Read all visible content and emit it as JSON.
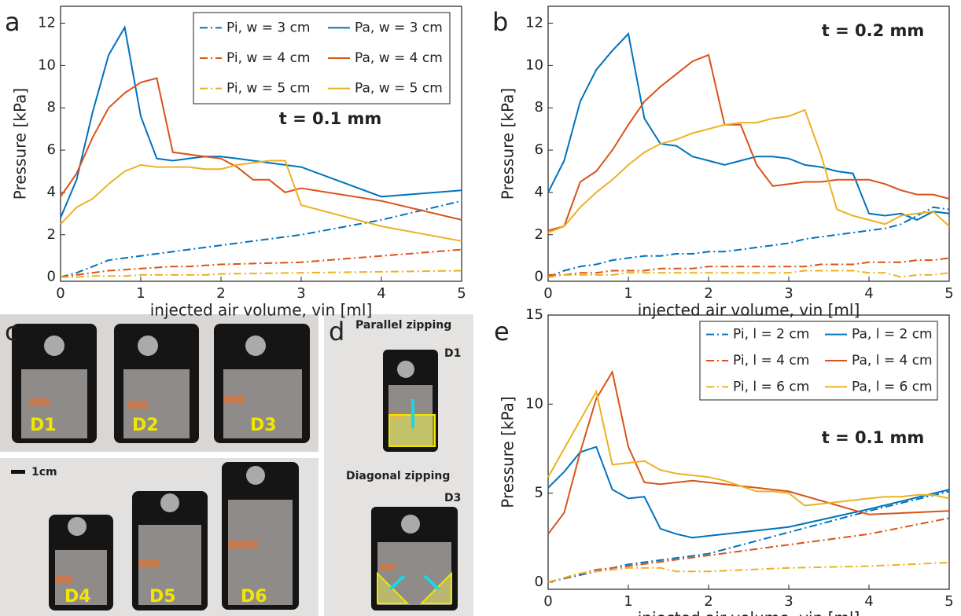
{
  "chart_data": [
    {
      "type": "line",
      "panel_label": "a",
      "annotation": "t = 0.1 mm",
      "x_label": "injected air volume, vin [ml]",
      "y_label": "Pressure [kPa]",
      "xlim": [
        0,
        5
      ],
      "ylim": [
        -0.2,
        12.8
      ],
      "xticks": [
        0,
        1,
        2,
        3,
        4,
        5
      ],
      "yticks": [
        0,
        2,
        4,
        6,
        8,
        10,
        12
      ],
      "legend": "upper right",
      "series": [
        {
          "name": "Pi, w = 3 cm",
          "color": "#0072BD",
          "dash": "dash-dot",
          "x": [
            0,
            0.2,
            0.4,
            0.6,
            0.8,
            1,
            1.2,
            1.4,
            1.6,
            1.8,
            2,
            3,
            4,
            5
          ],
          "values": [
            0,
            0.2,
            0.5,
            0.8,
            0.9,
            1.0,
            1.1,
            1.2,
            1.3,
            1.4,
            1.5,
            2.0,
            2.7,
            3.6
          ]
        },
        {
          "name": "Pi, w = 4 cm",
          "color": "#D95319",
          "dash": "dash-dot",
          "x": [
            0,
            0.2,
            0.4,
            0.6,
            0.8,
            1,
            1.2,
            1.4,
            1.6,
            1.8,
            2,
            3,
            4,
            5
          ],
          "values": [
            0,
            0.1,
            0.2,
            0.3,
            0.35,
            0.4,
            0.45,
            0.5,
            0.5,
            0.55,
            0.6,
            0.7,
            1.0,
            1.3
          ]
        },
        {
          "name": "Pi, w = 5 cm",
          "color": "#EDB120",
          "dash": "dash-dot",
          "x": [
            0,
            0.2,
            0.4,
            0.6,
            0.8,
            1,
            1.2,
            1.4,
            1.6,
            1.8,
            2,
            3,
            4,
            5
          ],
          "values": [
            0,
            0,
            0.05,
            0.05,
            0.05,
            0.1,
            0.1,
            0.1,
            0.1,
            0.1,
            0.15,
            0.2,
            0.25,
            0.3
          ]
        },
        {
          "name": "Pa, w = 3 cm",
          "color": "#0072BD",
          "dash": "solid",
          "x": [
            0,
            0.2,
            0.4,
            0.6,
            0.8,
            1,
            1.2,
            1.4,
            1.6,
            1.8,
            2,
            2.2,
            2.4,
            2.6,
            2.8,
            3,
            4,
            5
          ],
          "values": [
            2.8,
            4.6,
            7.8,
            10.5,
            11.8,
            7.6,
            5.6,
            5.5,
            5.6,
            5.7,
            5.7,
            5.6,
            5.5,
            5.4,
            5.3,
            5.2,
            3.8,
            4.1
          ]
        },
        {
          "name": "Pa, w = 4 cm",
          "color": "#D95319",
          "dash": "solid",
          "x": [
            0,
            0.2,
            0.4,
            0.6,
            0.8,
            1,
            1.2,
            1.4,
            1.6,
            1.8,
            2,
            2.2,
            2.4,
            2.6,
            2.8,
            3,
            4,
            5
          ],
          "values": [
            3.8,
            4.9,
            6.6,
            8.0,
            8.7,
            9.2,
            9.4,
            5.9,
            5.8,
            5.7,
            5.6,
            5.2,
            4.6,
            4.6,
            4.0,
            4.2,
            3.6,
            2.7
          ]
        },
        {
          "name": "Pa, w = 5 cm",
          "color": "#EDB120",
          "dash": "solid",
          "x": [
            0,
            0.2,
            0.4,
            0.6,
            0.8,
            1,
            1.2,
            1.4,
            1.6,
            1.8,
            2,
            2.2,
            2.4,
            2.6,
            2.8,
            3,
            4,
            5
          ],
          "values": [
            2.5,
            3.3,
            3.7,
            4.4,
            5.0,
            5.3,
            5.2,
            5.2,
            5.2,
            5.1,
            5.1,
            5.3,
            5.4,
            5.5,
            5.5,
            3.4,
            2.4,
            1.7
          ]
        }
      ]
    },
    {
      "type": "line",
      "panel_label": "b",
      "annotation": "t = 0.2 mm",
      "x_label": "injected air volume, vin [ml]",
      "y_label": "Pressure [kPa]",
      "xlim": [
        0,
        5
      ],
      "ylim": [
        -0.2,
        12.8
      ],
      "xticks": [
        0,
        1,
        2,
        3,
        4,
        5
      ],
      "yticks": [
        0,
        2,
        4,
        6,
        8,
        10,
        12
      ],
      "series": [
        {
          "name": "Pi, w = 3 cm",
          "color": "#0072BD",
          "dash": "dash-dot",
          "x": [
            0,
            0.2,
            0.4,
            0.6,
            0.8,
            1,
            1.2,
            1.4,
            1.6,
            1.8,
            2,
            2.2,
            2.4,
            2.6,
            2.8,
            3,
            3.2,
            3.4,
            3.6,
            3.8,
            4,
            4.2,
            4.4,
            4.6,
            4.8,
            5
          ],
          "values": [
            0,
            0.3,
            0.5,
            0.6,
            0.8,
            0.9,
            1.0,
            1.0,
            1.1,
            1.1,
            1.2,
            1.2,
            1.3,
            1.4,
            1.5,
            1.6,
            1.8,
            1.9,
            2.0,
            2.1,
            2.2,
            2.3,
            2.5,
            2.9,
            3.3,
            3.2
          ]
        },
        {
          "name": "Pi, w = 4 cm",
          "color": "#D95319",
          "dash": "dash-dot",
          "x": [
            0,
            0.2,
            0.4,
            0.6,
            0.8,
            1,
            1.2,
            1.4,
            1.6,
            1.8,
            2,
            2.2,
            2.4,
            2.6,
            2.8,
            3,
            3.2,
            3.4,
            3.6,
            3.8,
            4,
            4.2,
            4.4,
            4.6,
            4.8,
            5
          ],
          "values": [
            0.1,
            0.1,
            0.2,
            0.2,
            0.3,
            0.3,
            0.3,
            0.4,
            0.4,
            0.4,
            0.5,
            0.5,
            0.5,
            0.5,
            0.5,
            0.5,
            0.5,
            0.6,
            0.6,
            0.6,
            0.7,
            0.7,
            0.7,
            0.8,
            0.8,
            0.9
          ]
        },
        {
          "name": "Pi, w = 5 cm",
          "color": "#EDB120",
          "dash": "dash-dot",
          "x": [
            0,
            0.2,
            0.4,
            0.6,
            0.8,
            1,
            1.2,
            1.4,
            1.6,
            1.8,
            2,
            2.2,
            2.4,
            2.6,
            2.8,
            3,
            3.2,
            3.4,
            3.6,
            3.8,
            4,
            4.2,
            4.4,
            4.6,
            4.8,
            5
          ],
          "values": [
            0,
            0.1,
            0.1,
            0.1,
            0.1,
            0.2,
            0.2,
            0.2,
            0.2,
            0.2,
            0.2,
            0.2,
            0.2,
            0.2,
            0.2,
            0.2,
            0.3,
            0.3,
            0.3,
            0.3,
            0.2,
            0.2,
            0.0,
            0.1,
            0.1,
            0.2
          ]
        },
        {
          "name": "Pa, w = 3 cm",
          "color": "#0072BD",
          "dash": "solid",
          "x": [
            0,
            0.2,
            0.4,
            0.6,
            0.8,
            1,
            1.2,
            1.4,
            1.6,
            1.8,
            2,
            2.2,
            2.4,
            2.6,
            2.8,
            3,
            3.2,
            3.4,
            3.6,
            3.8,
            4,
            4.2,
            4.4,
            4.6,
            4.8,
            5
          ],
          "values": [
            4.0,
            5.5,
            8.3,
            9.8,
            10.7,
            11.5,
            7.5,
            6.3,
            6.2,
            5.7,
            5.5,
            5.3,
            5.5,
            5.7,
            5.7,
            5.6,
            5.3,
            5.2,
            5.0,
            4.9,
            3.0,
            2.9,
            3.0,
            2.7,
            3.1,
            3.0
          ]
        },
        {
          "name": "Pa, w = 4 cm",
          "color": "#D95319",
          "dash": "solid",
          "x": [
            0,
            0.2,
            0.4,
            0.6,
            0.8,
            1,
            1.2,
            1.4,
            1.6,
            1.8,
            2,
            2.2,
            2.4,
            2.6,
            2.8,
            3,
            3.2,
            3.4,
            3.6,
            3.8,
            4,
            4.2,
            4.4,
            4.6,
            4.8,
            5
          ],
          "values": [
            2.2,
            2.4,
            4.5,
            5.0,
            6.0,
            7.2,
            8.3,
            9.0,
            9.6,
            10.2,
            10.5,
            7.2,
            7.2,
            5.3,
            4.3,
            4.4,
            4.5,
            4.5,
            4.6,
            4.6,
            4.6,
            4.4,
            4.1,
            3.9,
            3.9,
            3.7
          ]
        },
        {
          "name": "Pa, w = 5 cm",
          "color": "#EDB120",
          "dash": "solid",
          "x": [
            0,
            0.2,
            0.4,
            0.6,
            0.8,
            1,
            1.2,
            1.4,
            1.6,
            1.8,
            2,
            2.2,
            2.4,
            2.6,
            2.8,
            3,
            3.2,
            3.4,
            3.6,
            3.8,
            4,
            4.2,
            4.4,
            4.6,
            4.8,
            5
          ],
          "values": [
            2.1,
            2.4,
            3.3,
            4.0,
            4.6,
            5.3,
            5.9,
            6.3,
            6.5,
            6.8,
            7.0,
            7.2,
            7.3,
            7.3,
            7.5,
            7.6,
            7.9,
            5.8,
            3.2,
            2.9,
            2.7,
            2.5,
            2.9,
            3.0,
            3.1,
            2.4
          ]
        }
      ]
    },
    {
      "type": "line",
      "panel_label": "e",
      "annotation": "t = 0.1 mm",
      "x_label": "injected air volume, vin [ml]",
      "y_label": "Pressure [kPa]",
      "xlim": [
        0,
        5
      ],
      "ylim": [
        -0.4,
        15
      ],
      "xticks": [
        0,
        1,
        2,
        3,
        4,
        5
      ],
      "yticks": [
        0,
        5,
        10,
        15
      ],
      "legend": "upper right",
      "series": [
        {
          "name": "Pi, l = 2 cm",
          "color": "#0072BD",
          "dash": "dash-dot",
          "x": [
            0,
            1,
            2,
            3,
            4,
            5
          ],
          "values": [
            0,
            1.0,
            1.6,
            2.8,
            4.0,
            5.1
          ]
        },
        {
          "name": "Pi, l = 4 cm",
          "color": "#D95319",
          "dash": "dash-dot",
          "x": [
            0,
            0.6,
            1,
            2,
            3,
            4,
            5
          ],
          "values": [
            0,
            0.7,
            0.9,
            1.5,
            2.1,
            2.7,
            3.6
          ]
        },
        {
          "name": "Pi, l = 6 cm",
          "color": "#EDB120",
          "dash": "dash-dot",
          "x": [
            0,
            0.4,
            0.6,
            0.8,
            1,
            1.2,
            1.4,
            1.6,
            2,
            3,
            4,
            5
          ],
          "values": [
            0,
            0.5,
            0.6,
            0.7,
            0.8,
            0.8,
            0.8,
            0.6,
            0.6,
            0.8,
            0.9,
            1.1
          ]
        },
        {
          "name": "Pa, l = 2 cm",
          "color": "#0072BD",
          "dash": "solid",
          "x": [
            0,
            0.2,
            0.4,
            0.6,
            0.8,
            1,
            1.2,
            1.4,
            1.6,
            1.8,
            2,
            3,
            4,
            5
          ],
          "values": [
            5.3,
            6.2,
            7.3,
            7.6,
            5.2,
            4.7,
            4.8,
            3.0,
            2.7,
            2.5,
            2.6,
            3.1,
            4.1,
            5.2
          ]
        },
        {
          "name": "Pa, l = 4 cm",
          "color": "#D95319",
          "dash": "solid",
          "x": [
            0,
            0.2,
            0.4,
            0.6,
            0.8,
            1,
            1.2,
            1.4,
            1.6,
            1.8,
            2,
            2.2,
            2.4,
            2.6,
            2.8,
            3,
            4,
            5
          ],
          "values": [
            2.7,
            3.9,
            7.3,
            10.3,
            11.8,
            7.6,
            5.6,
            5.5,
            5.6,
            5.7,
            5.6,
            5.5,
            5.4,
            5.3,
            5.2,
            5.1,
            3.8,
            4.0
          ]
        },
        {
          "name": "Pa, l = 6 cm",
          "color": "#EDB120",
          "dash": "solid",
          "x": [
            0,
            0.2,
            0.4,
            0.6,
            0.8,
            1,
            1.2,
            1.4,
            1.6,
            1.8,
            2,
            2.2,
            2.4,
            2.6,
            2.8,
            3,
            3.2,
            3.4,
            3.6,
            3.8,
            4,
            4.2,
            4.4,
            4.6,
            4.8,
            5
          ],
          "values": [
            5.9,
            7.5,
            9.1,
            10.7,
            6.6,
            6.7,
            6.8,
            6.3,
            6.1,
            6.0,
            5.9,
            5.7,
            5.4,
            5.1,
            5.1,
            5.0,
            4.3,
            4.4,
            4.5,
            4.6,
            4.7,
            4.8,
            4.8,
            4.9,
            4.9,
            4.7
          ]
        }
      ]
    }
  ],
  "photos": {
    "c": {
      "label": "c",
      "devices": [
        "D1",
        "D2",
        "D3",
        "D4",
        "D5",
        "D6"
      ],
      "scale": "1cm"
    },
    "d": {
      "label": "d",
      "parallel": "Parallel zipping",
      "parallel_device": "D1",
      "diagonal": "Diagonal zipping",
      "diagonal_device": "D3"
    }
  }
}
